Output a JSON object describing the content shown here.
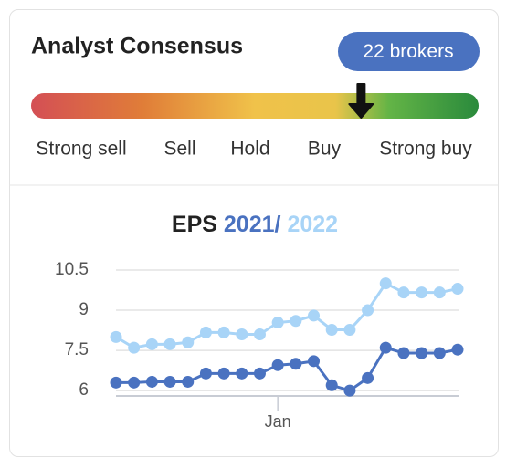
{
  "header": {
    "title": "Analyst Consensus",
    "brokers_count": 22,
    "brokers_label": "brokers"
  },
  "consensus": {
    "labels": [
      "Strong sell",
      "Sell",
      "Hold",
      "Buy",
      "Strong buy"
    ],
    "score": 3.95,
    "range": [
      1,
      5
    ]
  },
  "chart_data": {
    "type": "line",
    "title": "EPS",
    "legend_separator": "/",
    "categories": [
      null,
      null,
      null,
      null,
      null,
      null,
      null,
      null,
      null,
      "Jan",
      null,
      null,
      null,
      null,
      null,
      null,
      null,
      null,
      null,
      null
    ],
    "series": [
      {
        "name": "2021",
        "color": "#4a72c0",
        "values": [
          6.3,
          6.3,
          6.33,
          6.33,
          6.33,
          6.64,
          6.64,
          6.64,
          6.64,
          6.95,
          7.0,
          7.1,
          6.2,
          6.0,
          6.47,
          7.6,
          7.4,
          7.4,
          7.4,
          7.53
        ]
      },
      {
        "name": "2022",
        "color": "#a8d4f7",
        "values": [
          8.0,
          7.6,
          7.73,
          7.73,
          7.8,
          8.17,
          8.17,
          8.1,
          8.1,
          8.54,
          8.6,
          8.8,
          8.27,
          8.27,
          9.0,
          10.0,
          9.66,
          9.66,
          9.66,
          9.8
        ]
      }
    ],
    "ylim": [
      5.8,
      10.5
    ],
    "yticks": [
      6,
      7.5,
      9,
      10.5
    ],
    "grid": true
  }
}
